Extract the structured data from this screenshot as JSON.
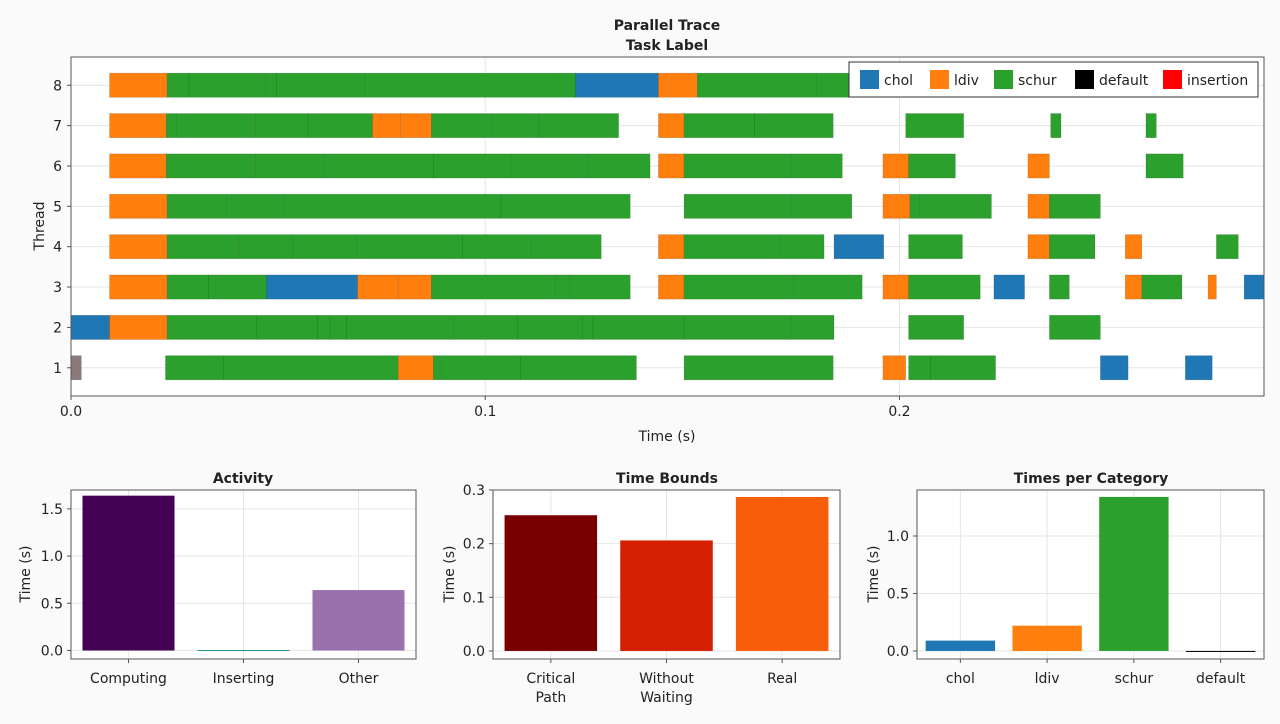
{
  "colors": {
    "chol": "#1f77b4",
    "ldiv": "#ff7f0e",
    "schur": "#2ca02c",
    "default": "#000000",
    "insertion": "#ff0000",
    "other_task": "#8c7a7a",
    "activity": [
      "#440154",
      "#21908c",
      "#9a70ad"
    ],
    "bounds": [
      "#7a0000",
      "#d42000",
      "#f85e0a"
    ],
    "category": [
      "#1f77b4",
      "#ff7f0e",
      "#2ca02c",
      "#000000"
    ]
  },
  "chart_data": [
    {
      "type": "gantt",
      "title": "Parallel Trace",
      "subtitle": "Task Label",
      "xlabel": "Time (s)",
      "ylabel": "Thread",
      "xlim": [
        0,
        0.288
      ],
      "ylim": [
        0.3,
        8.7
      ],
      "xticks": [
        0.0,
        0.1,
        0.2
      ],
      "xtick_labels": [
        "0.0",
        "0.1",
        "0.2"
      ],
      "yticks": [
        1,
        2,
        3,
        4,
        5,
        6,
        7,
        8
      ],
      "ytick_labels": [
        "1",
        "2",
        "3",
        "4",
        "5",
        "6",
        "7",
        "8"
      ],
      "grid": true,
      "legend": {
        "placement": "top-right",
        "entries": [
          "chol",
          "ldiv",
          "schur",
          "default",
          "insertion"
        ]
      },
      "tasks": [
        {
          "thread": 8,
          "start": 0.0093,
          "end": 0.0232,
          "label": "ldiv"
        },
        {
          "thread": 8,
          "start": 0.0232,
          "end": 0.0285,
          "label": "schur"
        },
        {
          "thread": 8,
          "start": 0.0285,
          "end": 0.047,
          "label": "schur"
        },
        {
          "thread": 8,
          "start": 0.047,
          "end": 0.0496,
          "label": "schur"
        },
        {
          "thread": 8,
          "start": 0.0496,
          "end": 0.071,
          "label": "schur"
        },
        {
          "thread": 8,
          "start": 0.071,
          "end": 0.1218,
          "label": "schur"
        },
        {
          "thread": 8,
          "start": 0.1218,
          "end": 0.1418,
          "label": "chol"
        },
        {
          "thread": 8,
          "start": 0.1418,
          "end": 0.1512,
          "label": "ldiv"
        },
        {
          "thread": 8,
          "start": 0.1512,
          "end": 0.18,
          "label": "schur"
        },
        {
          "thread": 8,
          "start": 0.18,
          "end": 0.188,
          "label": "schur"
        },
        {
          "thread": 7,
          "start": 0.0093,
          "end": 0.023,
          "label": "ldiv"
        },
        {
          "thread": 7,
          "start": 0.023,
          "end": 0.0255,
          "label": "schur"
        },
        {
          "thread": 7,
          "start": 0.0255,
          "end": 0.0445,
          "label": "schur"
        },
        {
          "thread": 7,
          "start": 0.0445,
          "end": 0.0572,
          "label": "schur"
        },
        {
          "thread": 7,
          "start": 0.0572,
          "end": 0.0728,
          "label": "schur"
        },
        {
          "thread": 7,
          "start": 0.0728,
          "end": 0.0795,
          "label": "ldiv"
        },
        {
          "thread": 7,
          "start": 0.0795,
          "end": 0.087,
          "label": "ldiv"
        },
        {
          "thread": 7,
          "start": 0.087,
          "end": 0.1018,
          "label": "schur"
        },
        {
          "thread": 7,
          "start": 0.1018,
          "end": 0.113,
          "label": "schur"
        },
        {
          "thread": 7,
          "start": 0.113,
          "end": 0.1322,
          "label": "schur"
        },
        {
          "thread": 7,
          "start": 0.1418,
          "end": 0.148,
          "label": "ldiv"
        },
        {
          "thread": 7,
          "start": 0.148,
          "end": 0.165,
          "label": "schur"
        },
        {
          "thread": 7,
          "start": 0.165,
          "end": 0.184,
          "label": "schur"
        },
        {
          "thread": 7,
          "start": 0.2015,
          "end": 0.2155,
          "label": "schur"
        },
        {
          "thread": 7,
          "start": 0.2365,
          "end": 0.239,
          "label": "schur"
        },
        {
          "thread": 7,
          "start": 0.2595,
          "end": 0.262,
          "label": "schur"
        },
        {
          "thread": 6,
          "start": 0.0093,
          "end": 0.023,
          "label": "ldiv"
        },
        {
          "thread": 6,
          "start": 0.023,
          "end": 0.0445,
          "label": "schur"
        },
        {
          "thread": 6,
          "start": 0.0445,
          "end": 0.061,
          "label": "schur"
        },
        {
          "thread": 6,
          "start": 0.061,
          "end": 0.0875,
          "label": "schur"
        },
        {
          "thread": 6,
          "start": 0.0875,
          "end": 0.1065,
          "label": "schur"
        },
        {
          "thread": 6,
          "start": 0.1065,
          "end": 0.125,
          "label": "schur"
        },
        {
          "thread": 6,
          "start": 0.125,
          "end": 0.1398,
          "label": "schur"
        },
        {
          "thread": 6,
          "start": 0.1418,
          "end": 0.148,
          "label": "ldiv"
        },
        {
          "thread": 6,
          "start": 0.148,
          "end": 0.174,
          "label": "schur"
        },
        {
          "thread": 6,
          "start": 0.174,
          "end": 0.1862,
          "label": "schur"
        },
        {
          "thread": 6,
          "start": 0.196,
          "end": 0.2022,
          "label": "ldiv"
        },
        {
          "thread": 6,
          "start": 0.2022,
          "end": 0.2135,
          "label": "schur"
        },
        {
          "thread": 6,
          "start": 0.231,
          "end": 0.2362,
          "label": "ldiv"
        },
        {
          "thread": 6,
          "start": 0.2595,
          "end": 0.2685,
          "label": "schur"
        },
        {
          "thread": 5,
          "start": 0.0093,
          "end": 0.0232,
          "label": "ldiv"
        },
        {
          "thread": 5,
          "start": 0.0232,
          "end": 0.0375,
          "label": "schur"
        },
        {
          "thread": 5,
          "start": 0.0375,
          "end": 0.0515,
          "label": "schur"
        },
        {
          "thread": 5,
          "start": 0.0515,
          "end": 0.1038,
          "label": "schur"
        },
        {
          "thread": 5,
          "start": 0.1038,
          "end": 0.135,
          "label": "schur"
        },
        {
          "thread": 5,
          "start": 0.148,
          "end": 0.174,
          "label": "schur"
        },
        {
          "thread": 5,
          "start": 0.174,
          "end": 0.1885,
          "label": "schur"
        },
        {
          "thread": 5,
          "start": 0.196,
          "end": 0.2025,
          "label": "ldiv"
        },
        {
          "thread": 5,
          "start": 0.2025,
          "end": 0.2048,
          "label": "schur"
        },
        {
          "thread": 5,
          "start": 0.2048,
          "end": 0.2222,
          "label": "schur"
        },
        {
          "thread": 5,
          "start": 0.231,
          "end": 0.2362,
          "label": "ldiv"
        },
        {
          "thread": 5,
          "start": 0.2362,
          "end": 0.2485,
          "label": "schur"
        },
        {
          "thread": 4,
          "start": 0.0093,
          "end": 0.0232,
          "label": "ldiv"
        },
        {
          "thread": 4,
          "start": 0.0232,
          "end": 0.0405,
          "label": "schur"
        },
        {
          "thread": 4,
          "start": 0.0405,
          "end": 0.0535,
          "label": "schur"
        },
        {
          "thread": 4,
          "start": 0.0535,
          "end": 0.069,
          "label": "schur"
        },
        {
          "thread": 4,
          "start": 0.069,
          "end": 0.0945,
          "label": "schur"
        },
        {
          "thread": 4,
          "start": 0.0945,
          "end": 0.111,
          "label": "schur"
        },
        {
          "thread": 4,
          "start": 0.111,
          "end": 0.128,
          "label": "schur"
        },
        {
          "thread": 4,
          "start": 0.1418,
          "end": 0.148,
          "label": "ldiv"
        },
        {
          "thread": 4,
          "start": 0.148,
          "end": 0.1712,
          "label": "schur"
        },
        {
          "thread": 4,
          "start": 0.1712,
          "end": 0.1818,
          "label": "schur"
        },
        {
          "thread": 4,
          "start": 0.1842,
          "end": 0.1962,
          "label": "chol"
        },
        {
          "thread": 4,
          "start": 0.2022,
          "end": 0.2152,
          "label": "schur"
        },
        {
          "thread": 4,
          "start": 0.231,
          "end": 0.2362,
          "label": "ldiv"
        },
        {
          "thread": 4,
          "start": 0.2362,
          "end": 0.2472,
          "label": "schur"
        },
        {
          "thread": 4,
          "start": 0.2545,
          "end": 0.2585,
          "label": "ldiv"
        },
        {
          "thread": 4,
          "start": 0.2765,
          "end": 0.2818,
          "label": "schur"
        },
        {
          "thread": 3,
          "start": 0.0093,
          "end": 0.0232,
          "label": "ldiv"
        },
        {
          "thread": 3,
          "start": 0.0232,
          "end": 0.0332,
          "label": "schur"
        },
        {
          "thread": 3,
          "start": 0.0332,
          "end": 0.0472,
          "label": "schur"
        },
        {
          "thread": 3,
          "start": 0.0472,
          "end": 0.0692,
          "label": "chol"
        },
        {
          "thread": 3,
          "start": 0.0692,
          "end": 0.079,
          "label": "ldiv"
        },
        {
          "thread": 3,
          "start": 0.079,
          "end": 0.087,
          "label": "ldiv"
        },
        {
          "thread": 3,
          "start": 0.087,
          "end": 0.1168,
          "label": "schur"
        },
        {
          "thread": 3,
          "start": 0.1168,
          "end": 0.1205,
          "label": "schur"
        },
        {
          "thread": 3,
          "start": 0.1205,
          "end": 0.135,
          "label": "schur"
        },
        {
          "thread": 3,
          "start": 0.1418,
          "end": 0.148,
          "label": "ldiv"
        },
        {
          "thread": 3,
          "start": 0.148,
          "end": 0.1745,
          "label": "schur"
        },
        {
          "thread": 3,
          "start": 0.1745,
          "end": 0.191,
          "label": "schur"
        },
        {
          "thread": 3,
          "start": 0.196,
          "end": 0.2022,
          "label": "ldiv"
        },
        {
          "thread": 3,
          "start": 0.2022,
          "end": 0.2195,
          "label": "schur"
        },
        {
          "thread": 3,
          "start": 0.2228,
          "end": 0.2302,
          "label": "chol"
        },
        {
          "thread": 3,
          "start": 0.2362,
          "end": 0.241,
          "label": "schur"
        },
        {
          "thread": 3,
          "start": 0.2545,
          "end": 0.2585,
          "label": "ldiv"
        },
        {
          "thread": 3,
          "start": 0.2585,
          "end": 0.2682,
          "label": "schur"
        },
        {
          "thread": 3,
          "start": 0.2745,
          "end": 0.2765,
          "label": "ldiv"
        },
        {
          "thread": 3,
          "start": 0.2832,
          "end": 0.288,
          "label": "chol"
        },
        {
          "thread": 2,
          "start": 0.0,
          "end": 0.0093,
          "label": "chol"
        },
        {
          "thread": 2,
          "start": 0.0093,
          "end": 0.0232,
          "label": "ldiv"
        },
        {
          "thread": 2,
          "start": 0.0232,
          "end": 0.0448,
          "label": "schur"
        },
        {
          "thread": 2,
          "start": 0.0448,
          "end": 0.0595,
          "label": "schur"
        },
        {
          "thread": 2,
          "start": 0.0595,
          "end": 0.0625,
          "label": "schur"
        },
        {
          "thread": 2,
          "start": 0.0625,
          "end": 0.0665,
          "label": "schur"
        },
        {
          "thread": 2,
          "start": 0.0665,
          "end": 0.0925,
          "label": "schur"
        },
        {
          "thread": 2,
          "start": 0.0925,
          "end": 0.1078,
          "label": "schur"
        },
        {
          "thread": 2,
          "start": 0.1078,
          "end": 0.1235,
          "label": "schur"
        },
        {
          "thread": 2,
          "start": 0.1235,
          "end": 0.126,
          "label": "schur"
        },
        {
          "thread": 2,
          "start": 0.126,
          "end": 0.148,
          "label": "schur"
        },
        {
          "thread": 2,
          "start": 0.148,
          "end": 0.174,
          "label": "schur"
        },
        {
          "thread": 2,
          "start": 0.174,
          "end": 0.1842,
          "label": "schur"
        },
        {
          "thread": 2,
          "start": 0.2022,
          "end": 0.2155,
          "label": "schur"
        },
        {
          "thread": 2,
          "start": 0.2362,
          "end": 0.2485,
          "label": "schur"
        },
        {
          "thread": 1,
          "start": 0.0,
          "end": 0.0025,
          "label": "other"
        },
        {
          "thread": 1,
          "start": 0.0228,
          "end": 0.0368,
          "label": "schur"
        },
        {
          "thread": 1,
          "start": 0.0368,
          "end": 0.079,
          "label": "schur"
        },
        {
          "thread": 1,
          "start": 0.079,
          "end": 0.0875,
          "label": "ldiv"
        },
        {
          "thread": 1,
          "start": 0.0875,
          "end": 0.0895,
          "label": "schur"
        },
        {
          "thread": 1,
          "start": 0.0895,
          "end": 0.1085,
          "label": "schur"
        },
        {
          "thread": 1,
          "start": 0.1085,
          "end": 0.1365,
          "label": "schur"
        },
        {
          "thread": 1,
          "start": 0.148,
          "end": 0.184,
          "label": "schur"
        },
        {
          "thread": 1,
          "start": 0.196,
          "end": 0.2015,
          "label": "ldiv"
        },
        {
          "thread": 1,
          "start": 0.2022,
          "end": 0.2075,
          "label": "schur"
        },
        {
          "thread": 1,
          "start": 0.2075,
          "end": 0.2232,
          "label": "schur"
        },
        {
          "thread": 1,
          "start": 0.2485,
          "end": 0.2552,
          "label": "chol"
        },
        {
          "thread": 1,
          "start": 0.269,
          "end": 0.2755,
          "label": "chol"
        }
      ]
    },
    {
      "type": "bar",
      "title": "Activity",
      "xlabel": "",
      "ylabel": "Time (s)",
      "categories": [
        "Computing",
        "Inserting",
        "Other"
      ],
      "values": [
        1.64,
        0.005,
        0.64
      ],
      "ylim": [
        -0.09,
        1.7
      ],
      "yticks": [
        0.0,
        0.5,
        1.0,
        1.5
      ],
      "ytick_labels": [
        "0.0",
        "0.5",
        "1.0",
        "1.5"
      ],
      "grid": true
    },
    {
      "type": "bar",
      "title": "Time Bounds",
      "xlabel": "",
      "ylabel": "Time (s)",
      "categories": [
        "Critical\nPath",
        "Without\nWaiting",
        "Real"
      ],
      "values": [
        0.253,
        0.206,
        0.287
      ],
      "ylim": [
        -0.015,
        0.3
      ],
      "yticks": [
        0.0,
        0.1,
        0.2,
        0.3
      ],
      "ytick_labels": [
        "0.0",
        "0.1",
        "0.2",
        "0.3"
      ],
      "grid": true
    },
    {
      "type": "bar",
      "title": "Times per Category",
      "xlabel": "",
      "ylabel": "Time (s)",
      "categories": [
        "chol",
        "ldiv",
        "schur",
        "default"
      ],
      "values": [
        0.09,
        0.22,
        1.34,
        0.0
      ],
      "ylim": [
        -0.07,
        1.4
      ],
      "yticks": [
        0.0,
        0.5,
        1.0
      ],
      "ytick_labels": [
        "0.0",
        "0.5",
        "1.0"
      ],
      "grid": true
    }
  ]
}
